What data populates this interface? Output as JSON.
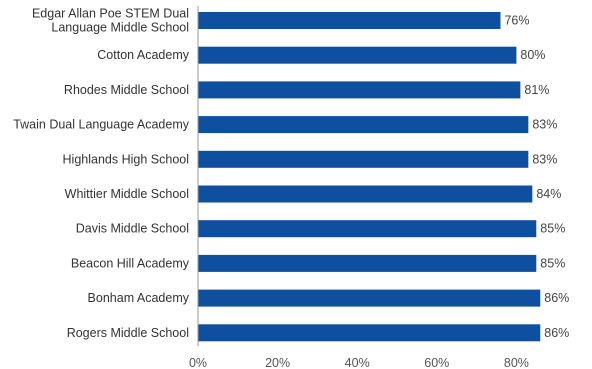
{
  "chart_data": {
    "type": "bar",
    "orientation": "horizontal",
    "categories": [
      [
        "Edgar Allan Poe STEM Dual",
        "Language Middle School"
      ],
      [
        "Cotton Academy"
      ],
      [
        "Rhodes Middle School"
      ],
      [
        "Twain Dual Language Academy"
      ],
      [
        "Highlands High School"
      ],
      [
        "Whittier Middle School"
      ],
      [
        "Davis Middle School"
      ],
      [
        "Beacon Hill Academy"
      ],
      [
        "Bonham Academy"
      ],
      [
        "Rogers Middle School"
      ]
    ],
    "values": [
      76,
      80,
      81,
      83,
      83,
      84,
      85,
      85,
      86,
      86
    ],
    "value_labels": [
      "76%",
      "80%",
      "81%",
      "83%",
      "83%",
      "84%",
      "85%",
      "85%",
      "86%",
      "86%"
    ],
    "x_ticks": [
      0,
      20,
      40,
      60,
      80
    ],
    "x_tick_labels": [
      "0%",
      "20%",
      "40%",
      "60%",
      "80%"
    ],
    "xlim": [
      0,
      100
    ],
    "grid": false,
    "legend": "none",
    "colors": {
      "bar": "#0f4fa0",
      "axis": "#999999"
    }
  }
}
